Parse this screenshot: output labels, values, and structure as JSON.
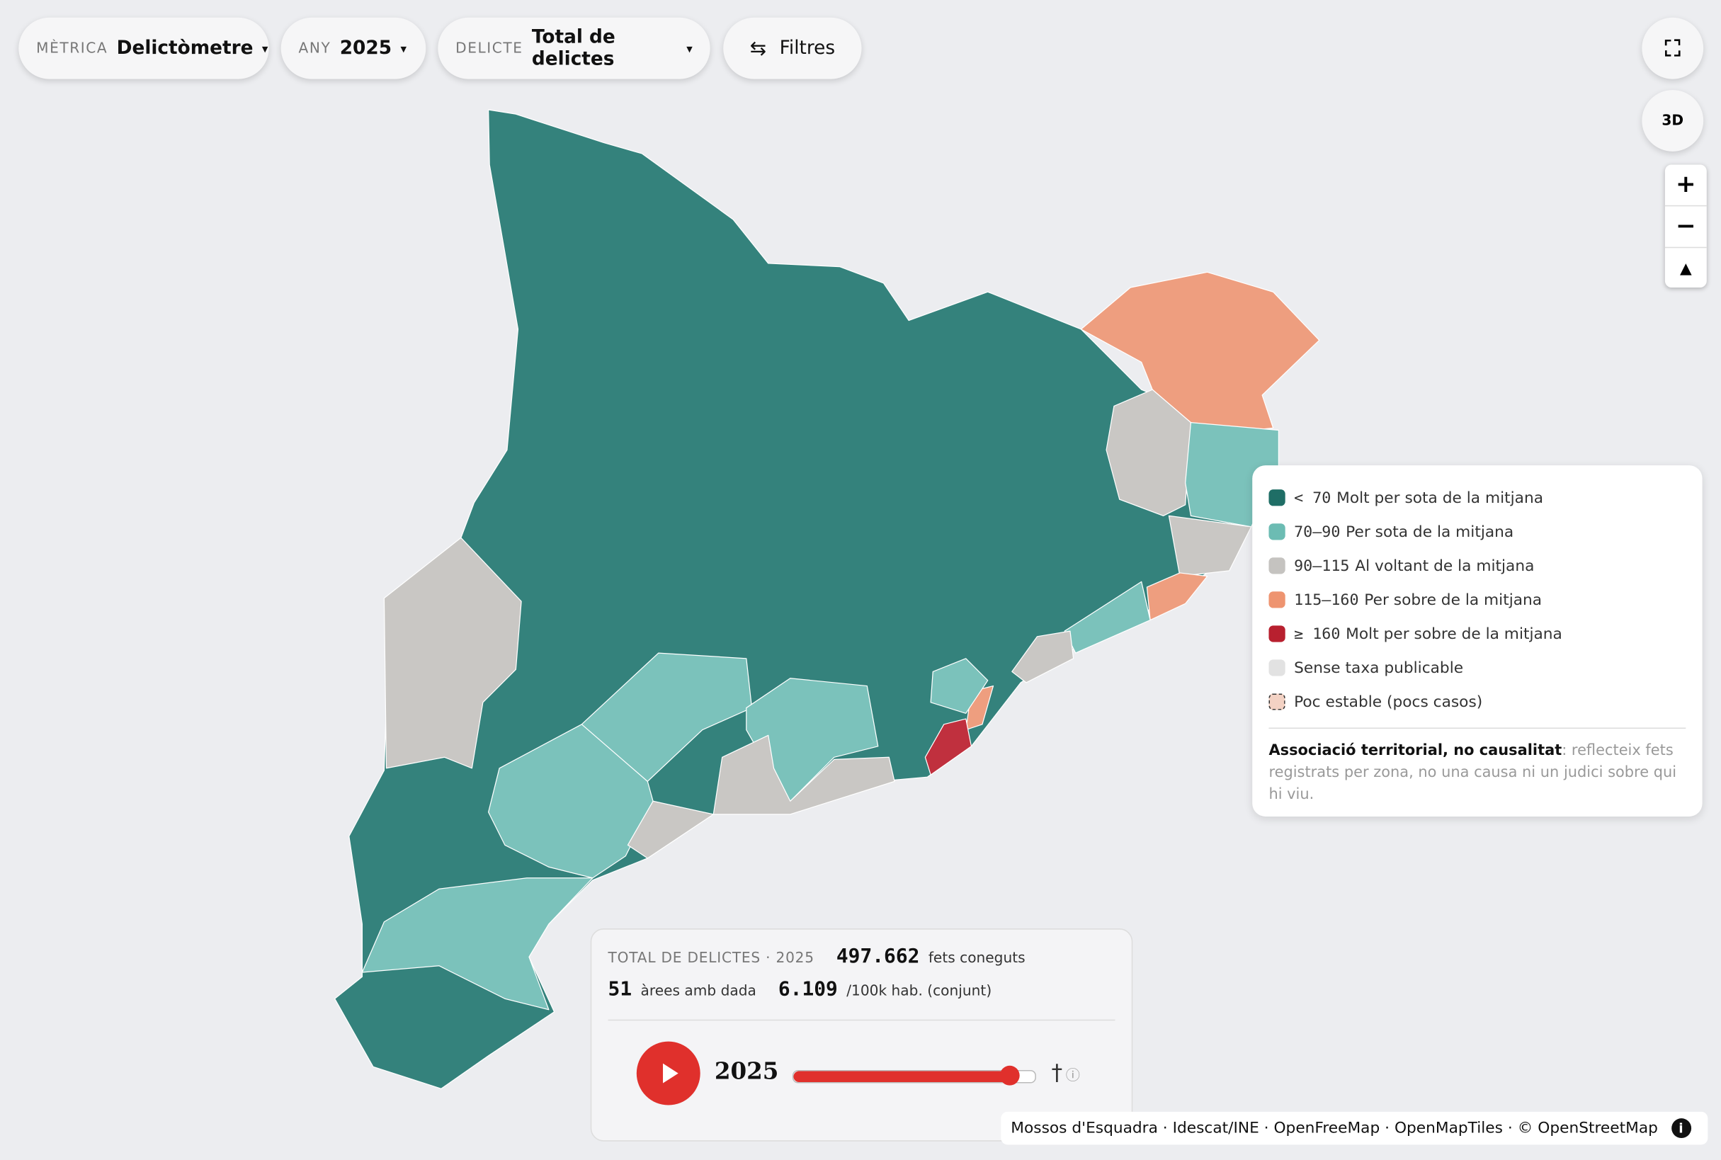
{
  "controls": {
    "metric": {
      "label": "MÈTRICA",
      "value": "Delictòmetre"
    },
    "year": {
      "label": "ANY",
      "value": "2025"
    },
    "crime": {
      "label": "DELICTE",
      "value": "Total de delictes"
    },
    "filters": "Filtres"
  },
  "map_buttons": {
    "view3d": "3D"
  },
  "legend": {
    "items": [
      {
        "range": "< 70",
        "label": "Molt per sota de la mitjana",
        "color": "#1f6e66"
      },
      {
        "range": "70–90",
        "label": "Per sota de la mitjana",
        "color": "#6cbcb3"
      },
      {
        "range": "90–115",
        "label": "Al voltant de la mitjana",
        "color": "#c5c3c0"
      },
      {
        "range": "115–160",
        "label": "Per sobre de la mitjana",
        "color": "#ee9470"
      },
      {
        "range": "≥ 160",
        "label": "Molt per sobre de la mitjana",
        "color": "#b8202f"
      },
      {
        "label": "Sense taxa publicable",
        "color": "#e2e2e2"
      },
      {
        "label": "Poc estable (pocs casos)",
        "color": "#f3d2c4"
      }
    ],
    "note_bold": "Associació territorial, no causalitat",
    "note": ": reflecteix fets registrats per zona, no una causa ni un judici sobre qui hi viu."
  },
  "stats": {
    "title": "TOTAL DE DELICTES · 2025",
    "total": "497.662",
    "total_unit": "fets coneguts",
    "areas": "51",
    "areas_unit": "àrees amb dada",
    "rate": "6.109",
    "rate_unit": "/100k hab. (conjunt)"
  },
  "timeline": {
    "year": "2025",
    "mark": "†"
  },
  "attribution": "Mossos d'Esquadra · Idescat/INE · OpenFreeMap · OpenMapTiles · © OpenStreetMap"
}
